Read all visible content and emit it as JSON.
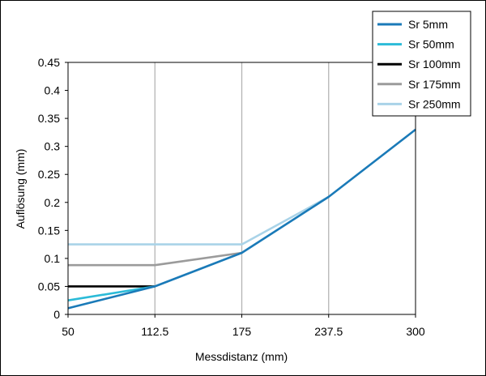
{
  "chart_data": {
    "type": "line",
    "xlabel": "Messdistanz (mm)",
    "ylabel": "Auflösung (mm)",
    "xlim": [
      50,
      300
    ],
    "ylim": [
      0,
      0.45
    ],
    "x_ticks": [
      50,
      112.5,
      175,
      237.5,
      300
    ],
    "x_tick_labels": [
      "50",
      "112.5",
      "175",
      "237.5",
      "300"
    ],
    "y_ticks": [
      0,
      0.05,
      0.1,
      0.15,
      0.2,
      0.25,
      0.3,
      0.35,
      0.4,
      0.45
    ],
    "y_tick_labels": [
      "0",
      "0.05",
      "0.1",
      "0.15",
      "0.2",
      "0.25",
      "0.3",
      "0.35",
      "0.4",
      "0.45"
    ],
    "grid": "vertical",
    "legend_position": "top-right",
    "series": [
      {
        "name": "Sr 5mm",
        "color": "#1a7ab8",
        "points": [
          [
            50,
            0.011
          ],
          [
            112.5,
            0.05
          ],
          [
            175,
            0.11
          ],
          [
            237.5,
            0.21
          ],
          [
            300,
            0.33
          ]
        ]
      },
      {
        "name": "Sr 50mm",
        "color": "#2bbbd8",
        "points": [
          [
            50,
            0.025
          ],
          [
            112.5,
            0.05
          ]
        ]
      },
      {
        "name": "Sr 100mm",
        "color": "#000000",
        "points": [
          [
            50,
            0.05
          ],
          [
            112.5,
            0.05
          ]
        ]
      },
      {
        "name": "Sr 175mm",
        "color": "#9b9b9b",
        "points": [
          [
            50,
            0.088
          ],
          [
            112.5,
            0.088
          ],
          [
            175,
            0.11
          ]
        ]
      },
      {
        "name": "Sr 250mm",
        "color": "#a9d3e8",
        "points": [
          [
            50,
            0.125
          ],
          [
            175,
            0.125
          ],
          [
            237.5,
            0.21
          ]
        ]
      }
    ]
  }
}
